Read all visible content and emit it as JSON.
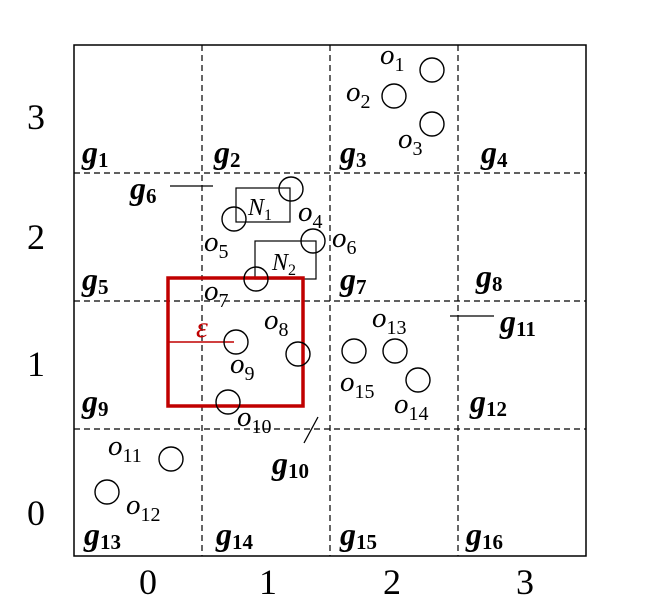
{
  "axes": {
    "x_ticks": [
      "0",
      "1",
      "2",
      "3"
    ],
    "y_ticks": [
      "0",
      "1",
      "2",
      "3"
    ]
  },
  "grid_cells": [
    {
      "letter": "g",
      "sub": "1"
    },
    {
      "letter": "g",
      "sub": "2"
    },
    {
      "letter": "g",
      "sub": "3"
    },
    {
      "letter": "g",
      "sub": "4"
    },
    {
      "letter": "g",
      "sub": "5"
    },
    {
      "letter": "g",
      "sub": "6"
    },
    {
      "letter": "g",
      "sub": "7"
    },
    {
      "letter": "g",
      "sub": "8"
    },
    {
      "letter": "g",
      "sub": "9"
    },
    {
      "letter": "g",
      "sub": "10"
    },
    {
      "letter": "g",
      "sub": "11"
    },
    {
      "letter": "g",
      "sub": "12"
    },
    {
      "letter": "g",
      "sub": "13"
    },
    {
      "letter": "g",
      "sub": "14"
    },
    {
      "letter": "g",
      "sub": "15"
    },
    {
      "letter": "g",
      "sub": "16"
    }
  ],
  "objects": [
    {
      "letter": "o",
      "sub": "1"
    },
    {
      "letter": "o",
      "sub": "2"
    },
    {
      "letter": "o",
      "sub": "3"
    },
    {
      "letter": "o",
      "sub": "4"
    },
    {
      "letter": "o",
      "sub": "5"
    },
    {
      "letter": "o",
      "sub": "6"
    },
    {
      "letter": "o",
      "sub": "7"
    },
    {
      "letter": "o",
      "sub": "8"
    },
    {
      "letter": "o",
      "sub": "9"
    },
    {
      "letter": "o",
      "sub": "10"
    },
    {
      "letter": "o",
      "sub": "11"
    },
    {
      "letter": "o",
      "sub": "12"
    },
    {
      "letter": "o",
      "sub": "13"
    },
    {
      "letter": "o",
      "sub": "14"
    },
    {
      "letter": "o",
      "sub": "15"
    }
  ],
  "nodes": [
    {
      "letter": "N",
      "sub": "1"
    },
    {
      "letter": "N",
      "sub": "2"
    }
  ],
  "epsilon_label": "ε",
  "colors": {
    "query_box": "#c00000",
    "grid_line": "#000000"
  }
}
